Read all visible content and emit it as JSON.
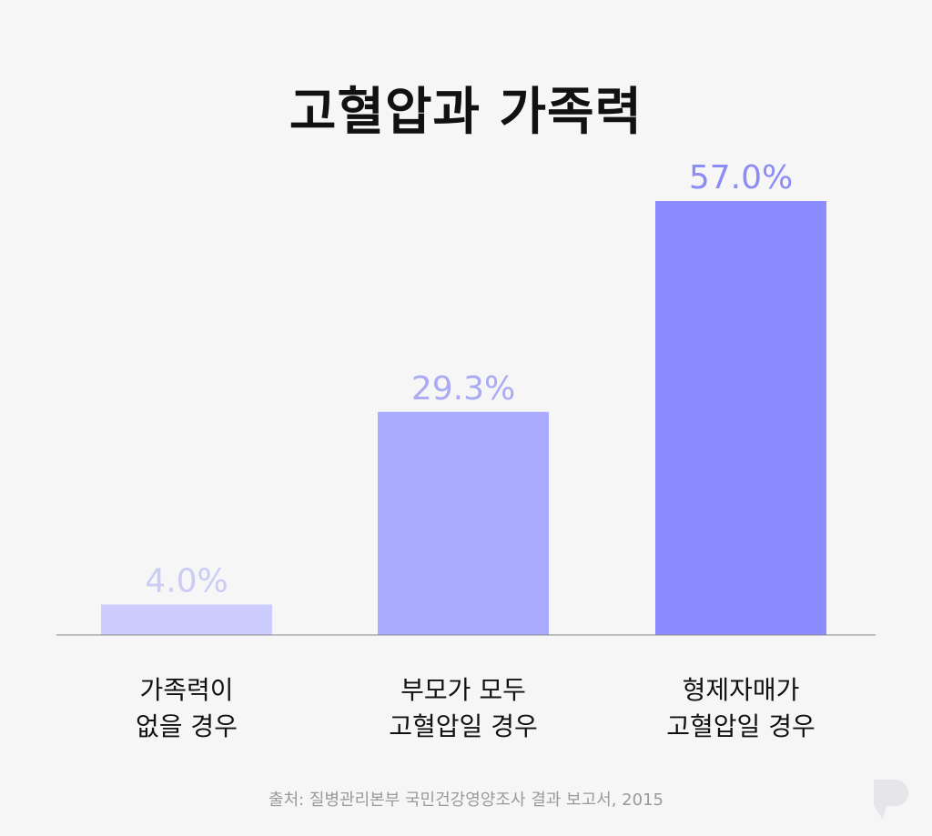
{
  "chart_data": {
    "type": "bar",
    "title": "고혈압과 가족력",
    "categories": [
      [
        "가족력이",
        "없을 경우"
      ],
      [
        "부모가 모두",
        "고혈압일 경우"
      ],
      [
        "형제자매가",
        "고혈압일 경우"
      ]
    ],
    "values": [
      4.0,
      29.3,
      57.0
    ],
    "value_labels": [
      "4.0%",
      "29.3%",
      "57.0%"
    ],
    "unit": "%",
    "ylim": [
      0,
      57.0
    ],
    "grid": false,
    "legend": "none",
    "bar_colors": [
      "#ccccff",
      "#aaaaff",
      "#8c8cff"
    ],
    "label_colors": [
      "#ccccf5",
      "#aaaaf5",
      "#8c8cf5"
    ],
    "baseline_color": "#888888"
  },
  "source": "출처: 질병관리본부 국민건강영양조사 결과 보고서, 2015",
  "logo_icon": "brand-logo-icon"
}
